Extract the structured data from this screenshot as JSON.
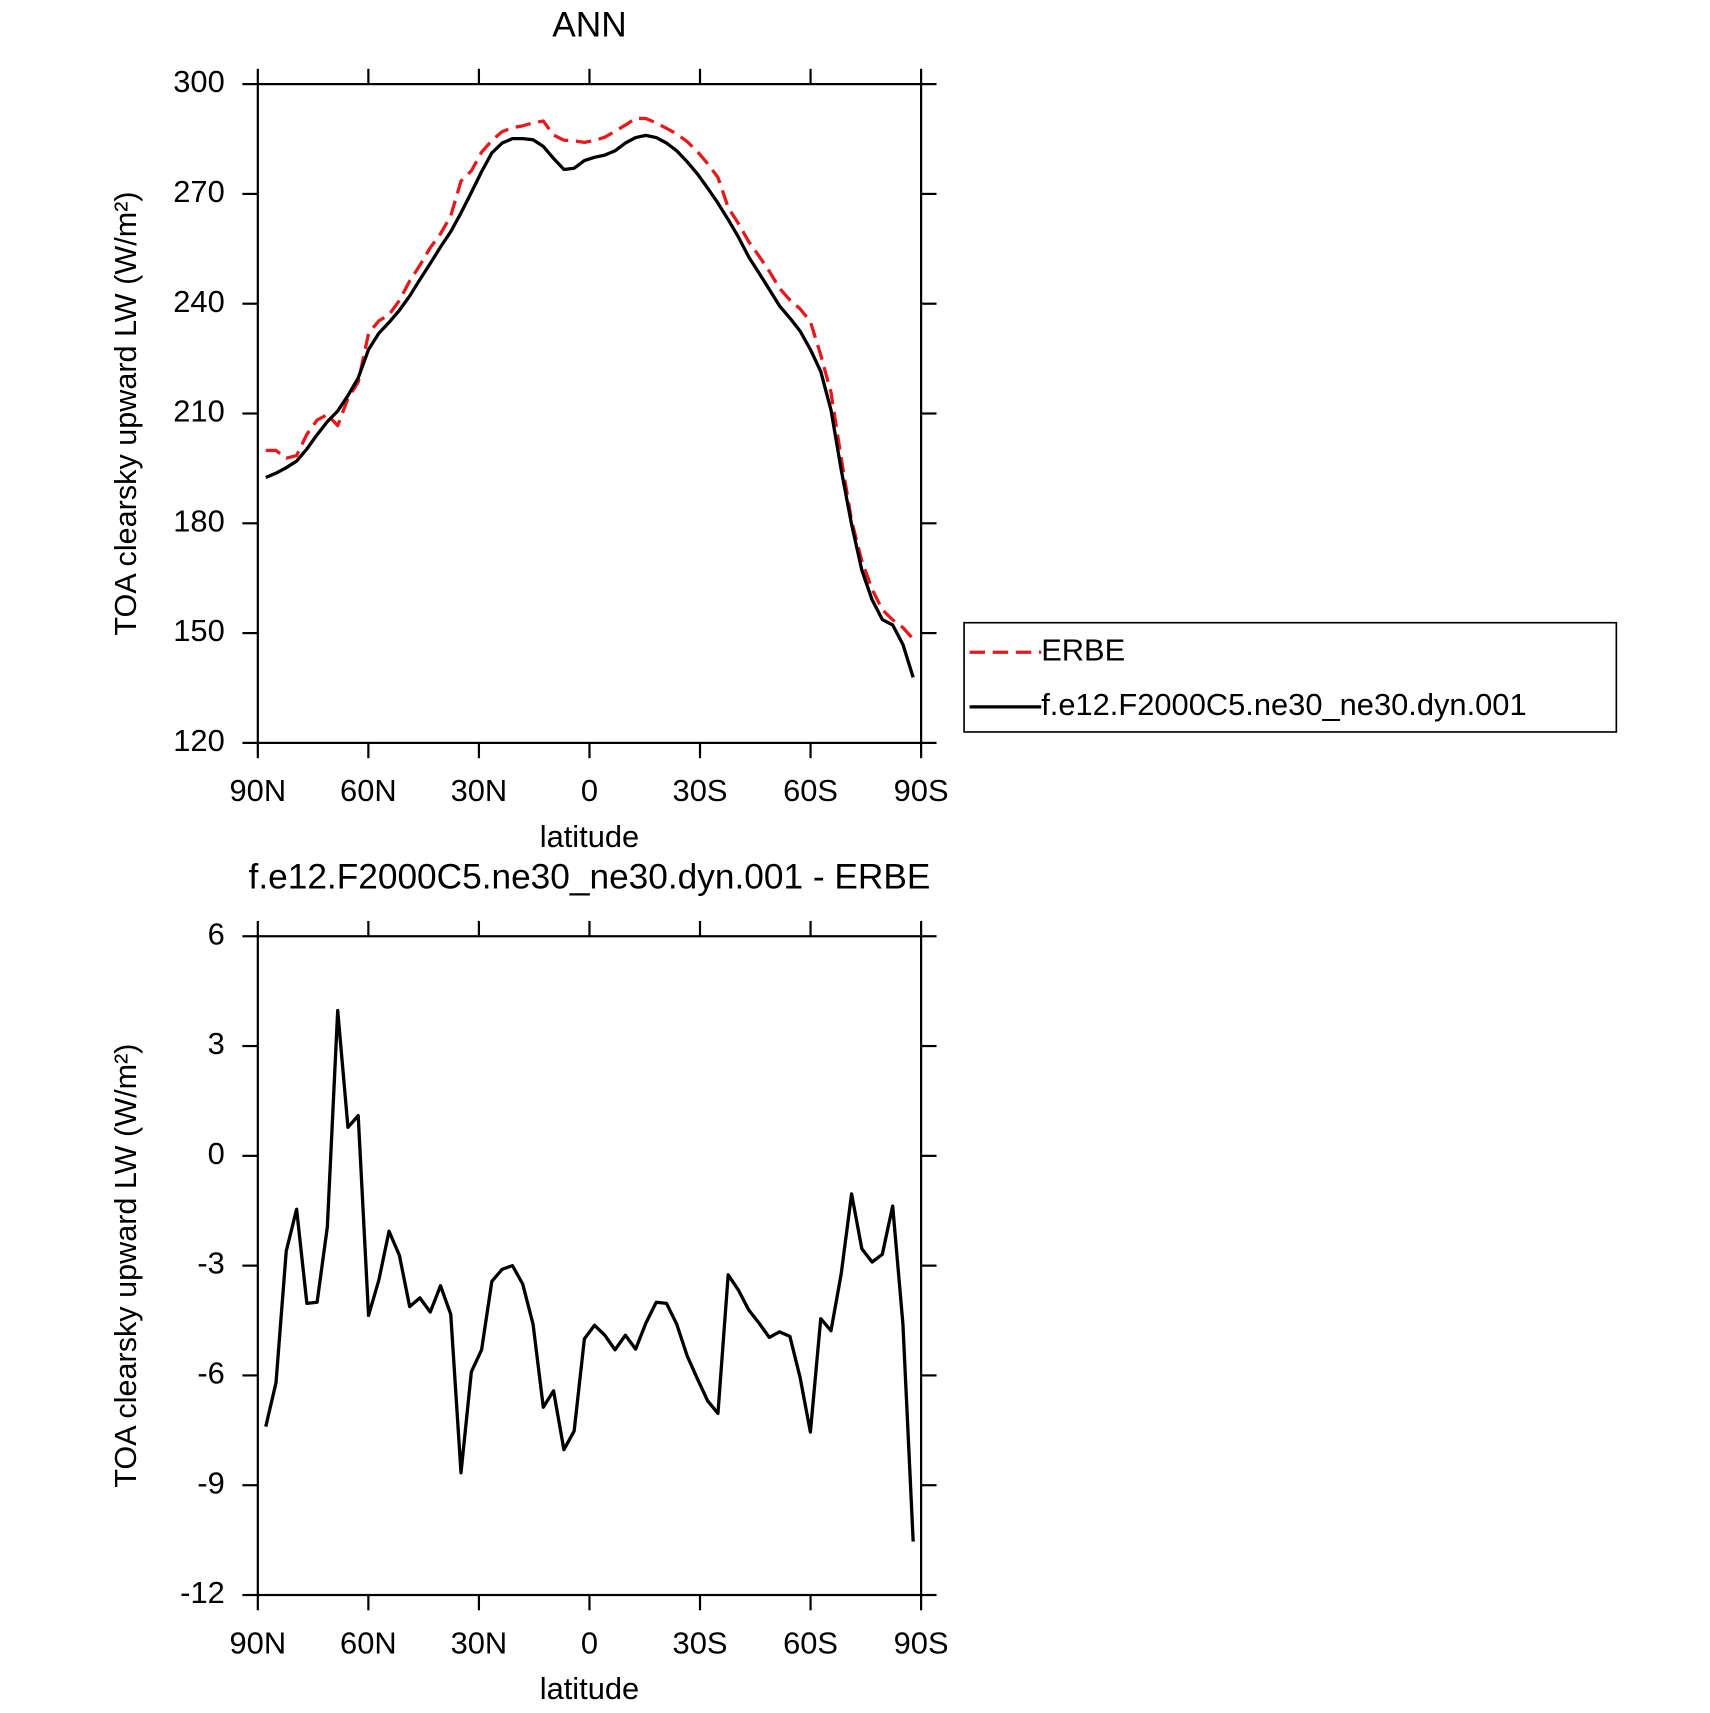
{
  "chart_data": [
    {
      "type": "line",
      "title": "ANN",
      "xlabel": "latitude",
      "ylabel": "TOA clearsky upward LW (W/m²)",
      "x": [
        87.86,
        85.07,
        82.28,
        79.49,
        76.7,
        73.91,
        71.12,
        68.33,
        65.54,
        62.75,
        59.96,
        57.17,
        54.38,
        51.59,
        48.8,
        46.01,
        43.22,
        40.43,
        37.64,
        34.85,
        32.06,
        29.27,
        26.48,
        23.69,
        20.9,
        18.11,
        15.32,
        12.53,
        9.74,
        6.95,
        4.16,
        1.37,
        -1.37,
        -4.16,
        -6.95,
        -9.74,
        -12.53,
        -15.32,
        -18.11,
        -20.9,
        -23.69,
        -26.48,
        -29.27,
        -32.06,
        -34.85,
        -37.64,
        -40.43,
        -43.22,
        -46.01,
        -48.8,
        -51.59,
        -54.38,
        -57.17,
        -59.96,
        -62.75,
        -65.54,
        -68.33,
        -71.12,
        -73.91,
        -76.7,
        -79.49,
        -82.28,
        -85.07,
        -87.86
      ],
      "series": [
        {
          "name": "ERBE",
          "color": "#e41a1c",
          "dash": true,
          "values": [
            199.9,
            199.9,
            197.8,
            198.5,
            204.3,
            208.2,
            209.7,
            206.7,
            214.1,
            218.6,
            231.9,
            235.3,
            237,
            240.9,
            246.2,
            250.5,
            255.3,
            259.1,
            264,
            273.5,
            276.3,
            281.4,
            284.6,
            287,
            288.1,
            288.6,
            289.4,
            289.9,
            286.1,
            284.7,
            284.5,
            284.1,
            284.6,
            285.5,
            287.1,
            288.8,
            290.7,
            290.6,
            289.4,
            287.9,
            286.4,
            284.3,
            281.6,
            278.3,
            274.5,
            266.3,
            261.9,
            257,
            253,
            248.9,
            244.2,
            241,
            238.6,
            235.1,
            226,
            215.8,
            197.8,
            180.7,
            169.7,
            162,
            156.4,
            153.6,
            151.5,
            148.4
          ]
        },
        {
          "name": "f.e12.F2000C5.ne30_ne30.dyn.001",
          "color": "#000000",
          "dash": false,
          "values": [
            192.5,
            193.7,
            195.2,
            197,
            200.3,
            204.2,
            207.8,
            210.7,
            214.9,
            219.7,
            227.5,
            231.9,
            234.9,
            238.2,
            242.1,
            246.6,
            251,
            255.5,
            259.7,
            264.8,
            270.4,
            276.1,
            281.2,
            283.9,
            285.1,
            285.1,
            284.8,
            283,
            279.7,
            276.7,
            277,
            279.1,
            280,
            280.6,
            281.8,
            283.9,
            285.4,
            286,
            285.4,
            283.9,
            281.8,
            278.8,
            275.5,
            271.6,
            267.5,
            263,
            258.2,
            252.8,
            248.4,
            243.9,
            239.4,
            236.1,
            232.5,
            227.5,
            221.5,
            211,
            194.6,
            179.7,
            167.2,
            159.1,
            153.7,
            152.2,
            146.9,
            137.9
          ]
        }
      ],
      "xlim": [
        90,
        -90
      ],
      "xticks": [
        {
          "value": 90,
          "label": "90N"
        },
        {
          "value": 60,
          "label": "60N"
        },
        {
          "value": 30,
          "label": "30N"
        },
        0,
        {
          "value": -30,
          "label": "30S"
        },
        {
          "value": -60,
          "label": "60S"
        },
        {
          "value": -90,
          "label": "90S"
        }
      ],
      "ylim": [
        120,
        300
      ],
      "yticks": [
        120,
        150,
        180,
        210,
        240,
        270,
        300
      ]
    },
    {
      "type": "line",
      "title": "f.e12.F2000C5.ne30_ne30.dyn.001 - ERBE",
      "xlabel": "latitude",
      "ylabel": "TOA clearsky upward LW (W/m²)",
      "x": [
        87.86,
        85.07,
        82.28,
        79.49,
        76.7,
        73.91,
        71.12,
        68.33,
        65.54,
        62.75,
        59.96,
        57.17,
        54.38,
        51.59,
        48.8,
        46.01,
        43.22,
        40.43,
        37.64,
        34.85,
        32.06,
        29.27,
        26.48,
        23.69,
        20.9,
        18.11,
        15.32,
        12.53,
        9.74,
        6.95,
        4.16,
        1.37,
        -1.37,
        -4.16,
        -6.95,
        -9.74,
        -12.53,
        -15.32,
        -18.11,
        -20.9,
        -23.69,
        -26.48,
        -29.27,
        -32.06,
        -34.85,
        -37.64,
        -40.43,
        -43.22,
        -46.01,
        -48.8,
        -51.59,
        -54.38,
        -57.17,
        -59.96,
        -62.75,
        -65.54,
        -68.33,
        -71.12,
        -73.91,
        -76.7,
        -79.49,
        -82.28,
        -85.07,
        -87.86
      ],
      "series": [
        {
          "color": "#000000",
          "dash": false,
          "values": [
            -7.4,
            -6.2,
            -2.6,
            -1.46,
            -4.03,
            -4,
            -1.94,
            3.97,
            0.78,
            1.1,
            -4.36,
            -3.4,
            -2.06,
            -2.72,
            -4.12,
            -3.88,
            -4.27,
            -3.55,
            -4.33,
            -8.66,
            -5.9,
            -5.3,
            -3.43,
            -3.1,
            -3,
            -3.5,
            -4.6,
            -6.87,
            -6.42,
            -8.03,
            -7.52,
            -5,
            -4.63,
            -4.9,
            -5.3,
            -4.9,
            -5.28,
            -4.57,
            -4,
            -4.03,
            -4.6,
            -5.46,
            -6.09,
            -6.69,
            -7.04,
            -3.25,
            -3.67,
            -4.21,
            -4.57,
            -4.96,
            -4.81,
            -4.93,
            -6.06,
            -7.55,
            -4.45,
            -4.78,
            -3.22,
            -1.04,
            -2.54,
            -2.9,
            -2.69,
            -1.37,
            -4.6,
            -10.54
          ]
        }
      ],
      "xlim": [
        90,
        -90
      ],
      "xticks": [
        {
          "value": 90,
          "label": "90N"
        },
        {
          "value": 60,
          "label": "60N"
        },
        {
          "value": 30,
          "label": "30N"
        },
        0,
        {
          "value": -30,
          "label": "30S"
        },
        {
          "value": -60,
          "label": "60S"
        },
        {
          "value": -90,
          "label": "90S"
        }
      ],
      "ylim": [
        -12,
        6
      ],
      "yticks": [
        -12,
        -9,
        -6,
        -3,
        0,
        3,
        6
      ]
    }
  ]
}
